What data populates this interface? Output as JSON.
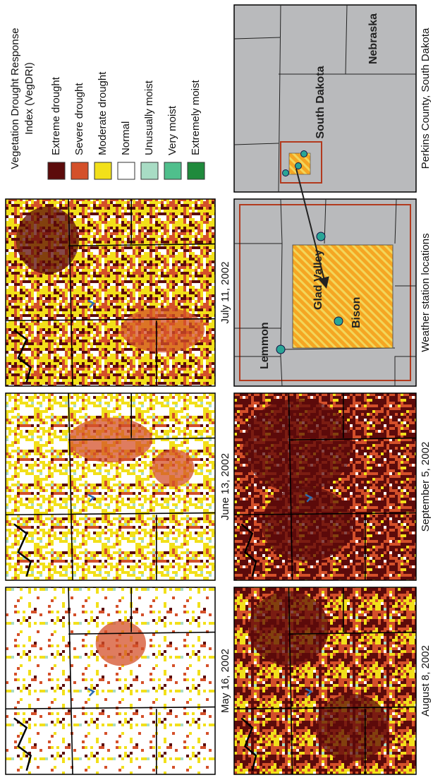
{
  "legend": {
    "title": [
      "Vegetation Drought Response",
      "Index (VegDRI)"
    ],
    "items": [
      {
        "label": "Extreme drought",
        "color": "#5c0b0b"
      },
      {
        "label": "Severe drought",
        "color": "#d4502a"
      },
      {
        "label": "Moderate drought",
        "color": "#f2e01a"
      },
      {
        "label": "Normal",
        "color": "#ffffff"
      },
      {
        "label": "Unusually moist",
        "color": "#a8dcc4"
      },
      {
        "label": "Very moist",
        "color": "#4fbf8c"
      },
      {
        "label": "Extremely moist",
        "color": "#1f8a3c"
      }
    ]
  },
  "panels": [
    {
      "label": "May 16, 2002"
    },
    {
      "label": "June 13, 2002"
    },
    {
      "label": "July 11, 2002"
    },
    {
      "label": "August 8, 2002"
    },
    {
      "label": "September 5, 2002"
    },
    {
      "label": "Weather station locations"
    },
    {
      "label": "Perkins County, South Dakota"
    }
  ],
  "stations": [
    "Lemmon",
    "Bison",
    "Glad Valley"
  ],
  "states": [
    "South Dakota",
    "Nebraska"
  ]
}
